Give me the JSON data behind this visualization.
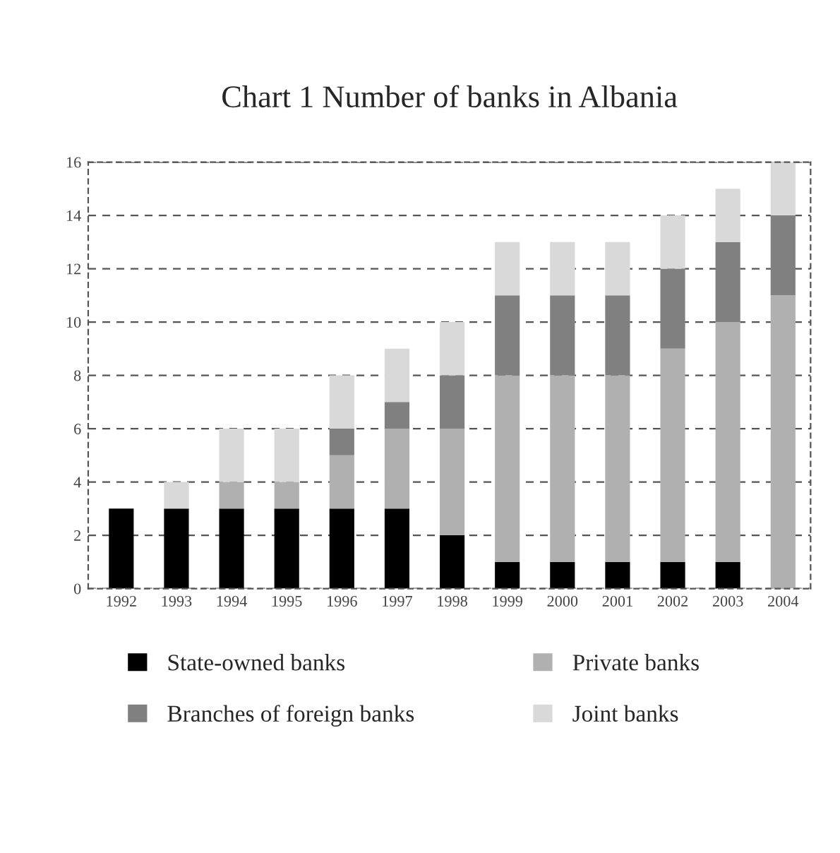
{
  "chart_data": {
    "type": "bar",
    "stacked": true,
    "title": "Chart 1 Number of banks in Albania",
    "categories": [
      "1992",
      "1993",
      "1994",
      "1995",
      "1996",
      "1997",
      "1998",
      "1999",
      "2000",
      "2001",
      "2002",
      "2003",
      "2004"
    ],
    "series": [
      {
        "name": "State-owned banks",
        "color": "#000000",
        "values": [
          3,
          3,
          3,
          3,
          3,
          3,
          2,
          1,
          1,
          1,
          1,
          1,
          0
        ]
      },
      {
        "name": "Private banks",
        "color": "#b0b0b0",
        "values": [
          0,
          0,
          1,
          1,
          2,
          3,
          4,
          7,
          7,
          7,
          8,
          9,
          11
        ]
      },
      {
        "name": "Branches of foreign banks",
        "color": "#808080",
        "values": [
          0,
          0,
          0,
          0,
          1,
          1,
          2,
          3,
          3,
          3,
          3,
          3,
          3
        ]
      },
      {
        "name": "Joint banks",
        "color": "#d9d9d9",
        "values": [
          0,
          1,
          2,
          2,
          2,
          2,
          2,
          2,
          2,
          2,
          2,
          2,
          2
        ]
      }
    ],
    "ylim": [
      0,
      16
    ],
    "yticks": [
      0,
      2,
      4,
      6,
      8,
      10,
      12,
      14,
      16
    ],
    "grid": "y",
    "legend": "bottom"
  }
}
